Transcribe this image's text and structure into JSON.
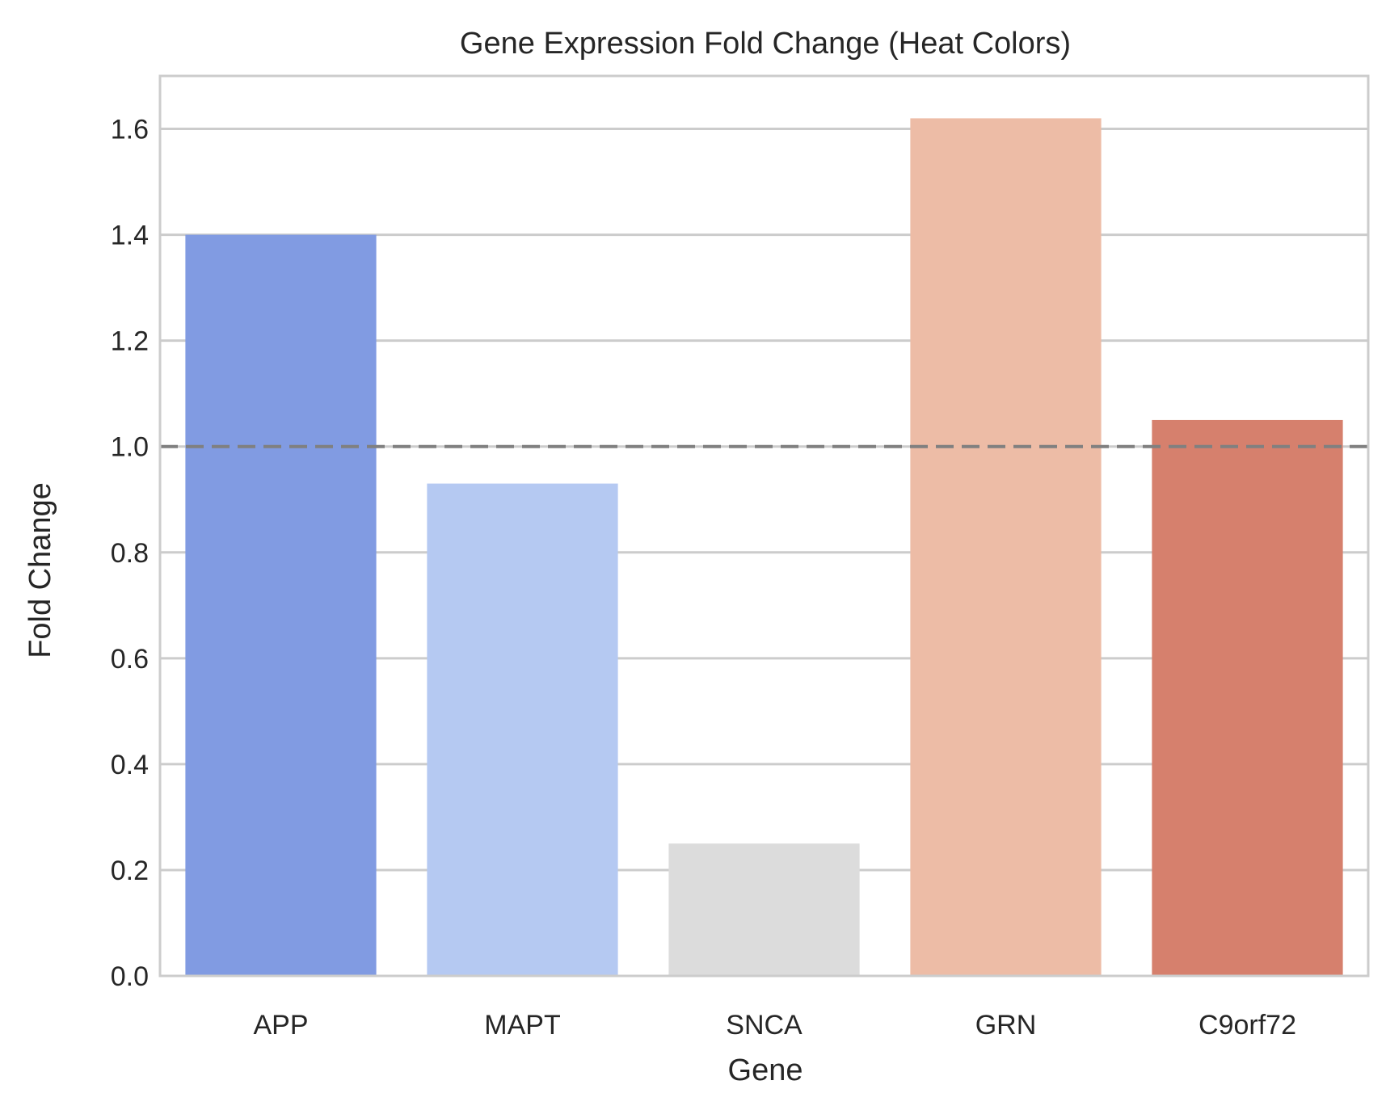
{
  "chart_data": {
    "type": "bar",
    "title": "Gene Expression Fold Change (Heat Colors)",
    "xlabel": "Gene",
    "ylabel": "Fold Change",
    "categories": [
      "APP",
      "MAPT",
      "SNCA",
      "GRN",
      "C9orf72"
    ],
    "values": [
      1.4,
      0.93,
      0.25,
      1.62,
      1.05
    ],
    "colors": [
      "#819bE2",
      "#b5c9f2",
      "#dcdcdc",
      "#edbca6",
      "#d6806d"
    ],
    "ylim": [
      0,
      1.7
    ],
    "yticks": [
      0.0,
      0.2,
      0.4,
      0.6,
      0.8,
      1.0,
      1.2,
      1.4,
      1.6
    ],
    "ytick_labels": [
      "0.0",
      "0.2",
      "0.4",
      "0.6",
      "0.8",
      "1.0",
      "1.2",
      "1.4",
      "1.6"
    ],
    "reference_line": {
      "y": 1.0,
      "style": "dashed",
      "color": "#808080"
    },
    "grid": "horizontal",
    "legend": "none"
  }
}
